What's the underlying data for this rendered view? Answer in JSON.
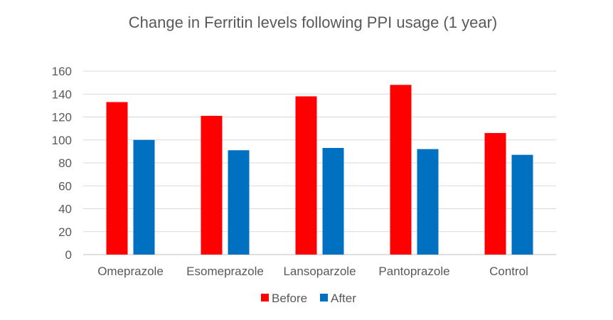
{
  "chart_data": {
    "type": "bar",
    "title": "Change in Ferritin levels following PPI usage (1 year)",
    "categories": [
      "Omeprazole",
      "Esomeprazole",
      "Lansoparzole",
      "Pantoprazole",
      "Control"
    ],
    "series": [
      {
        "name": "Before",
        "color": "#ff0000",
        "values": [
          133,
          121,
          138,
          148,
          106
        ]
      },
      {
        "name": "After",
        "color": "#0070c0",
        "values": [
          100,
          91,
          93,
          92,
          87
        ]
      }
    ],
    "ylim": [
      0,
      160
    ],
    "yticks": [
      "0",
      "20",
      "40",
      "60",
      "80",
      "100",
      "120",
      "140",
      "160"
    ],
    "grid": true,
    "legend_position": "bottom",
    "xlabel": "",
    "ylabel": ""
  }
}
